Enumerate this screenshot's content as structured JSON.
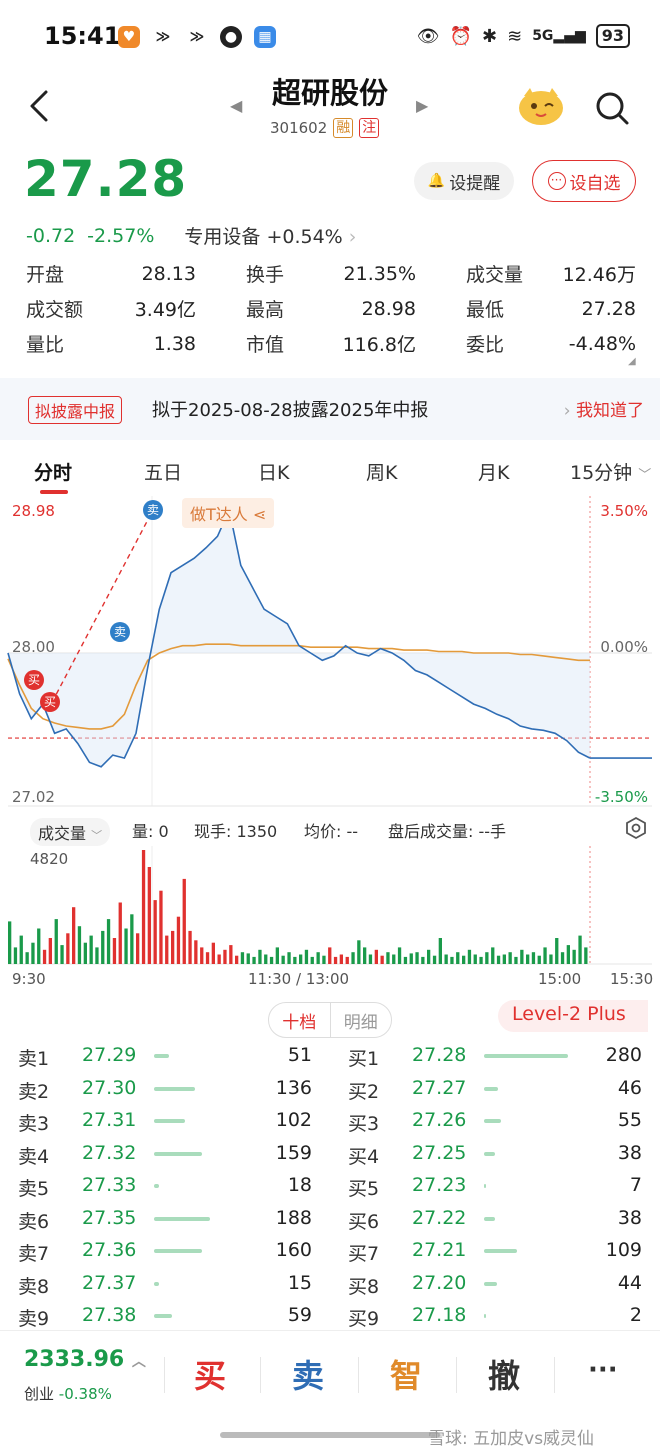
{
  "status_bar": {
    "time": "15:41",
    "network": "5G",
    "battery": "93"
  },
  "header": {
    "stock_name": "超研股份",
    "stock_code": "301602",
    "tag_margin": "融",
    "tag_watch": "注"
  },
  "quote": {
    "price": "27.28",
    "change": "-0.72",
    "change_pct": "-2.57%",
    "sector": "专用设备",
    "sector_change": "+0.54%",
    "remind_label": "设提醒",
    "watch_label": "设自选"
  },
  "stats": [
    [
      {
        "label": "开盘",
        "value": "28.13"
      },
      {
        "label": "换手",
        "value": "21.35%"
      },
      {
        "label": "成交量",
        "value": "12.46万"
      }
    ],
    [
      {
        "label": "成交额",
        "value": "3.49亿"
      },
      {
        "label": "最高",
        "value": "28.98"
      },
      {
        "label": "最低",
        "value": "27.28"
      }
    ],
    [
      {
        "label": "量比",
        "value": "1.38"
      },
      {
        "label": "市值",
        "value": "116.8亿"
      },
      {
        "label": "委比",
        "value": "-4.48%"
      }
    ]
  ],
  "notice": {
    "badge": "拟披露中报",
    "text": "拟于2025-08-28披露2025年中报",
    "action": "我知道了"
  },
  "tabs": [
    "分时",
    "五日",
    "日K",
    "周K",
    "月K",
    "15分钟"
  ],
  "chart_labels": {
    "max_price": "28.98",
    "ref_price": "28.00",
    "min_price": "27.02",
    "max_pct": "3.50%",
    "ref_pct": "0.00%",
    "min_pct": "-3.50%",
    "badge": "做T达人",
    "buy": "买",
    "sell": "卖"
  },
  "chart_data": {
    "type": "line",
    "ylim": [
      27.02,
      28.98
    ],
    "reference": 28.0,
    "series": [
      {
        "values": [
          28.0,
          27.72,
          27.55,
          27.65,
          27.45,
          27.48,
          27.38,
          27.25,
          27.22,
          27.3,
          27.28,
          27.45,
          27.9,
          28.3,
          28.55,
          28.6,
          28.65,
          28.72,
          28.8,
          28.98,
          28.6,
          28.45,
          28.3,
          28.25,
          28.2,
          28.05,
          28.0,
          27.95,
          27.98,
          28.05,
          28.0,
          27.98,
          28.03,
          28.0,
          27.95,
          27.88,
          27.85,
          27.8,
          27.75,
          27.7,
          27.65,
          27.62,
          27.58,
          27.55,
          27.5,
          27.48,
          27.47,
          27.45,
          27.4,
          27.32,
          27.28
        ]
      },
      {
        "values": [
          27.96,
          27.78,
          27.62,
          27.55,
          27.52,
          27.5,
          27.49,
          27.48,
          27.48,
          27.5,
          27.58,
          27.78,
          27.95,
          28.0,
          28.03,
          28.05,
          28.05,
          28.06,
          28.06,
          28.06,
          28.05,
          28.05,
          28.05,
          28.05,
          28.05,
          28.05,
          28.04,
          28.04,
          28.04,
          28.04,
          28.04,
          28.03,
          28.03,
          28.03,
          28.02,
          28.02,
          28.02,
          28.01,
          28.01,
          28.01,
          28.0,
          28.0,
          28.0,
          28.0,
          27.99,
          27.99,
          27.98,
          27.97,
          27.96,
          27.95,
          27.95
        ]
      }
    ],
    "volume": {
      "max_label": "4820",
      "values": [
        1800,
        700,
        1200,
        500,
        900,
        1500,
        600,
        1100,
        1900,
        800,
        1300,
        2400,
        1600,
        900,
        1200,
        700,
        1400,
        1900,
        1100,
        2600,
        1500,
        2100,
        1300,
        4820,
        4100,
        2700,
        3100,
        1200,
        1400,
        2000,
        3600,
        1400,
        1000,
        700,
        500,
        900,
        400,
        600,
        800,
        350,
        500,
        450,
        300,
        600,
        400,
        300,
        700,
        350,
        500,
        300,
        400,
        600,
        300,
        500,
        350,
        700,
        300,
        400,
        300,
        500,
        1000,
        700,
        400,
        600,
        350,
        500,
        400,
        700,
        300,
        450,
        500,
        300,
        600,
        350,
        1100,
        400,
        300,
        500,
        350,
        600,
        400,
        300,
        500,
        700,
        350,
        400,
        500,
        300,
        600,
        400,
        500,
        350,
        700,
        400,
        1100,
        500,
        800,
        600,
        1200,
        700
      ]
    },
    "x_ticks": [
      "9:30",
      "11:30 / 13:00",
      "15:00",
      "15:30"
    ]
  },
  "volume_header": {
    "selector": "成交量",
    "vol": "量: 0",
    "hand": "现手: 1350",
    "avg": "均价: --",
    "after": "盘后成交量: --手"
  },
  "order_book": {
    "tab_ten": "十档",
    "tab_detail": "明细",
    "level2": "Level-2 Plus",
    "asks": [
      {
        "label": "卖1",
        "price": "27.29",
        "qty": "51"
      },
      {
        "label": "卖2",
        "price": "27.30",
        "qty": "136"
      },
      {
        "label": "卖3",
        "price": "27.31",
        "qty": "102"
      },
      {
        "label": "卖4",
        "price": "27.32",
        "qty": "159"
      },
      {
        "label": "卖5",
        "price": "27.33",
        "qty": "18"
      },
      {
        "label": "卖6",
        "price": "27.35",
        "qty": "188"
      },
      {
        "label": "卖7",
        "price": "27.36",
        "qty": "160"
      },
      {
        "label": "卖8",
        "price": "27.37",
        "qty": "15"
      },
      {
        "label": "卖9",
        "price": "27.38",
        "qty": "59"
      }
    ],
    "bids": [
      {
        "label": "买1",
        "price": "27.28",
        "qty": "280"
      },
      {
        "label": "买2",
        "price": "27.27",
        "qty": "46"
      },
      {
        "label": "买3",
        "price": "27.26",
        "qty": "55"
      },
      {
        "label": "买4",
        "price": "27.25",
        "qty": "38"
      },
      {
        "label": "买5",
        "price": "27.23",
        "qty": "7"
      },
      {
        "label": "买6",
        "price": "27.22",
        "qty": "38"
      },
      {
        "label": "买7",
        "price": "27.21",
        "qty": "109"
      },
      {
        "label": "买8",
        "price": "27.20",
        "qty": "44"
      },
      {
        "label": "买9",
        "price": "27.18",
        "qty": "2"
      }
    ]
  },
  "bottom_bar": {
    "index_value": "2333.96",
    "index_name": "创业",
    "index_change": "-0.38%",
    "buy": "买",
    "sell": "卖",
    "smart": "智",
    "cancel": "撤",
    "more": "···"
  },
  "watermark": "雪球: 五加皮vs威灵仙",
  "colors": {
    "up": "#e0312f",
    "down": "#1a9a4a",
    "price_line": "#2f6db5",
    "avg_line": "#e39a3b"
  }
}
